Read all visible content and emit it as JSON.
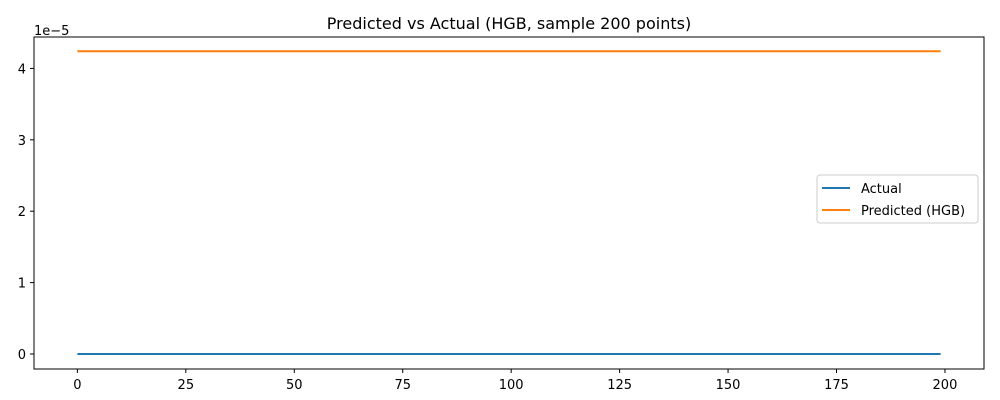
{
  "chart_data": {
    "type": "line",
    "title": "Predicted vs Actual (HGB, sample 200 points)",
    "xlabel": "",
    "ylabel": "",
    "y_offset_label": "1e−5",
    "xlim": [
      -10,
      209
    ],
    "ylim": [
      -2.1e-06,
      4.44e-05
    ],
    "x_ticks": [
      0,
      25,
      50,
      75,
      100,
      125,
      150,
      175,
      200
    ],
    "x_tick_labels": [
      "0",
      "25",
      "50",
      "75",
      "100",
      "125",
      "150",
      "175",
      "200"
    ],
    "y_ticks": [
      0,
      1e-05,
      2e-05,
      3e-05,
      4e-05
    ],
    "y_tick_labels": [
      "0",
      "1",
      "2",
      "3",
      "4"
    ],
    "grid": false,
    "legend_position": "center-right",
    "series": [
      {
        "name": "Actual",
        "color": "#1f77b4",
        "x": [
          0,
          199
        ],
        "values": [
          0,
          0
        ]
      },
      {
        "name": "Predicted (HGB)",
        "color": "#ff7f0e",
        "x": [
          0,
          199
        ],
        "values": [
          4.24e-05,
          4.24e-05
        ]
      }
    ]
  }
}
